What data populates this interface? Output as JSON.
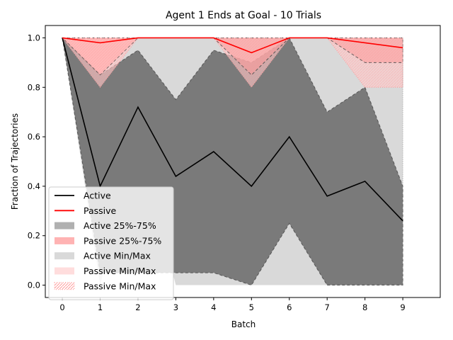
{
  "chart_data": {
    "type": "line",
    "title": "Agent 1 Ends at Goal - 10 Trials",
    "xlabel": "Batch",
    "ylabel": "Fraction of Trajectories",
    "xlim": [
      -0.45,
      9.99
    ],
    "ylim": [
      -0.05,
      1.05
    ],
    "x": [
      0,
      1,
      2,
      3,
      4,
      5,
      6,
      7,
      8,
      9
    ],
    "xticks": [
      "0",
      "1",
      "2",
      "3",
      "4",
      "5",
      "6",
      "7",
      "8",
      "9"
    ],
    "yticks": [
      "0.0",
      "0.2",
      "0.4",
      "0.6",
      "0.8",
      "1.0"
    ],
    "ytick_values": [
      0.0,
      0.2,
      0.4,
      0.6,
      0.8,
      1.0
    ],
    "grid": false,
    "legend_position": "lower-left",
    "series": [
      {
        "name": "Active",
        "kind": "line",
        "color": "#000000",
        "values": [
          1.0,
          0.4,
          0.72,
          0.44,
          0.54,
          0.4,
          0.6,
          0.36,
          0.42,
          0.26
        ]
      },
      {
        "name": "Passive",
        "kind": "line",
        "color": "#ff0000",
        "values": [
          1.0,
          0.98,
          1.0,
          1.0,
          1.0,
          0.94,
          1.0,
          1.0,
          0.98,
          0.96
        ]
      }
    ],
    "bands": [
      {
        "name": "Active Min/Max",
        "color": "#d9d9d9",
        "lower": [
          1.0,
          0.0,
          0.6,
          0.0,
          0.0,
          0.0,
          0.0,
          0.0,
          0.0,
          0.0
        ],
        "upper": [
          1.0,
          0.85,
          1.0,
          1.0,
          1.0,
          1.0,
          1.0,
          1.0,
          1.0,
          1.0
        ]
      },
      {
        "name": "Active 25%-75%",
        "color": "#7a7a7a",
        "lower": [
          1.0,
          0.05,
          0.05,
          0.05,
          0.05,
          0.0,
          0.25,
          0.0,
          0.0,
          0.0
        ],
        "upper": [
          1.0,
          0.85,
          0.95,
          0.75,
          0.95,
          0.9,
          1.0,
          0.7,
          0.8,
          0.4
        ]
      },
      {
        "name": "Passive Min/Max",
        "color": "#ffcccc",
        "lower": [
          1.0,
          0.8,
          1.0,
          1.0,
          1.0,
          0.8,
          1.0,
          1.0,
          0.8,
          0.8
        ],
        "upper": [
          1.0,
          1.0,
          1.0,
          1.0,
          1.0,
          1.0,
          1.0,
          1.0,
          1.0,
          1.0
        ]
      },
      {
        "name": "Passive 25%-75%",
        "color": "#ff9999",
        "lower": [
          1.0,
          0.85,
          1.0,
          1.0,
          1.0,
          0.85,
          1.0,
          1.0,
          0.9,
          0.9
        ],
        "upper": [
          1.0,
          1.0,
          1.0,
          1.0,
          1.0,
          1.0,
          1.0,
          1.0,
          1.0,
          1.0
        ]
      }
    ],
    "legend": [
      {
        "label": "Active",
        "kind": "line",
        "color": "#000000"
      },
      {
        "label": "Passive",
        "kind": "line",
        "color": "#ff0000"
      },
      {
        "label": "Active 25%-75%",
        "kind": "patch",
        "color": "#b0b0b0"
      },
      {
        "label": "Passive 25%-75%",
        "kind": "patch",
        "color": "#ffb3b3"
      },
      {
        "label": "Active Min/Max",
        "kind": "patch",
        "color": "#d9d9d9"
      },
      {
        "label": "Passive Min/Max",
        "kind": "patch",
        "color": "#ffdddd"
      },
      {
        "label": "Passive Min/Max",
        "kind": "hatched",
        "color": "#ffcccc"
      }
    ]
  }
}
